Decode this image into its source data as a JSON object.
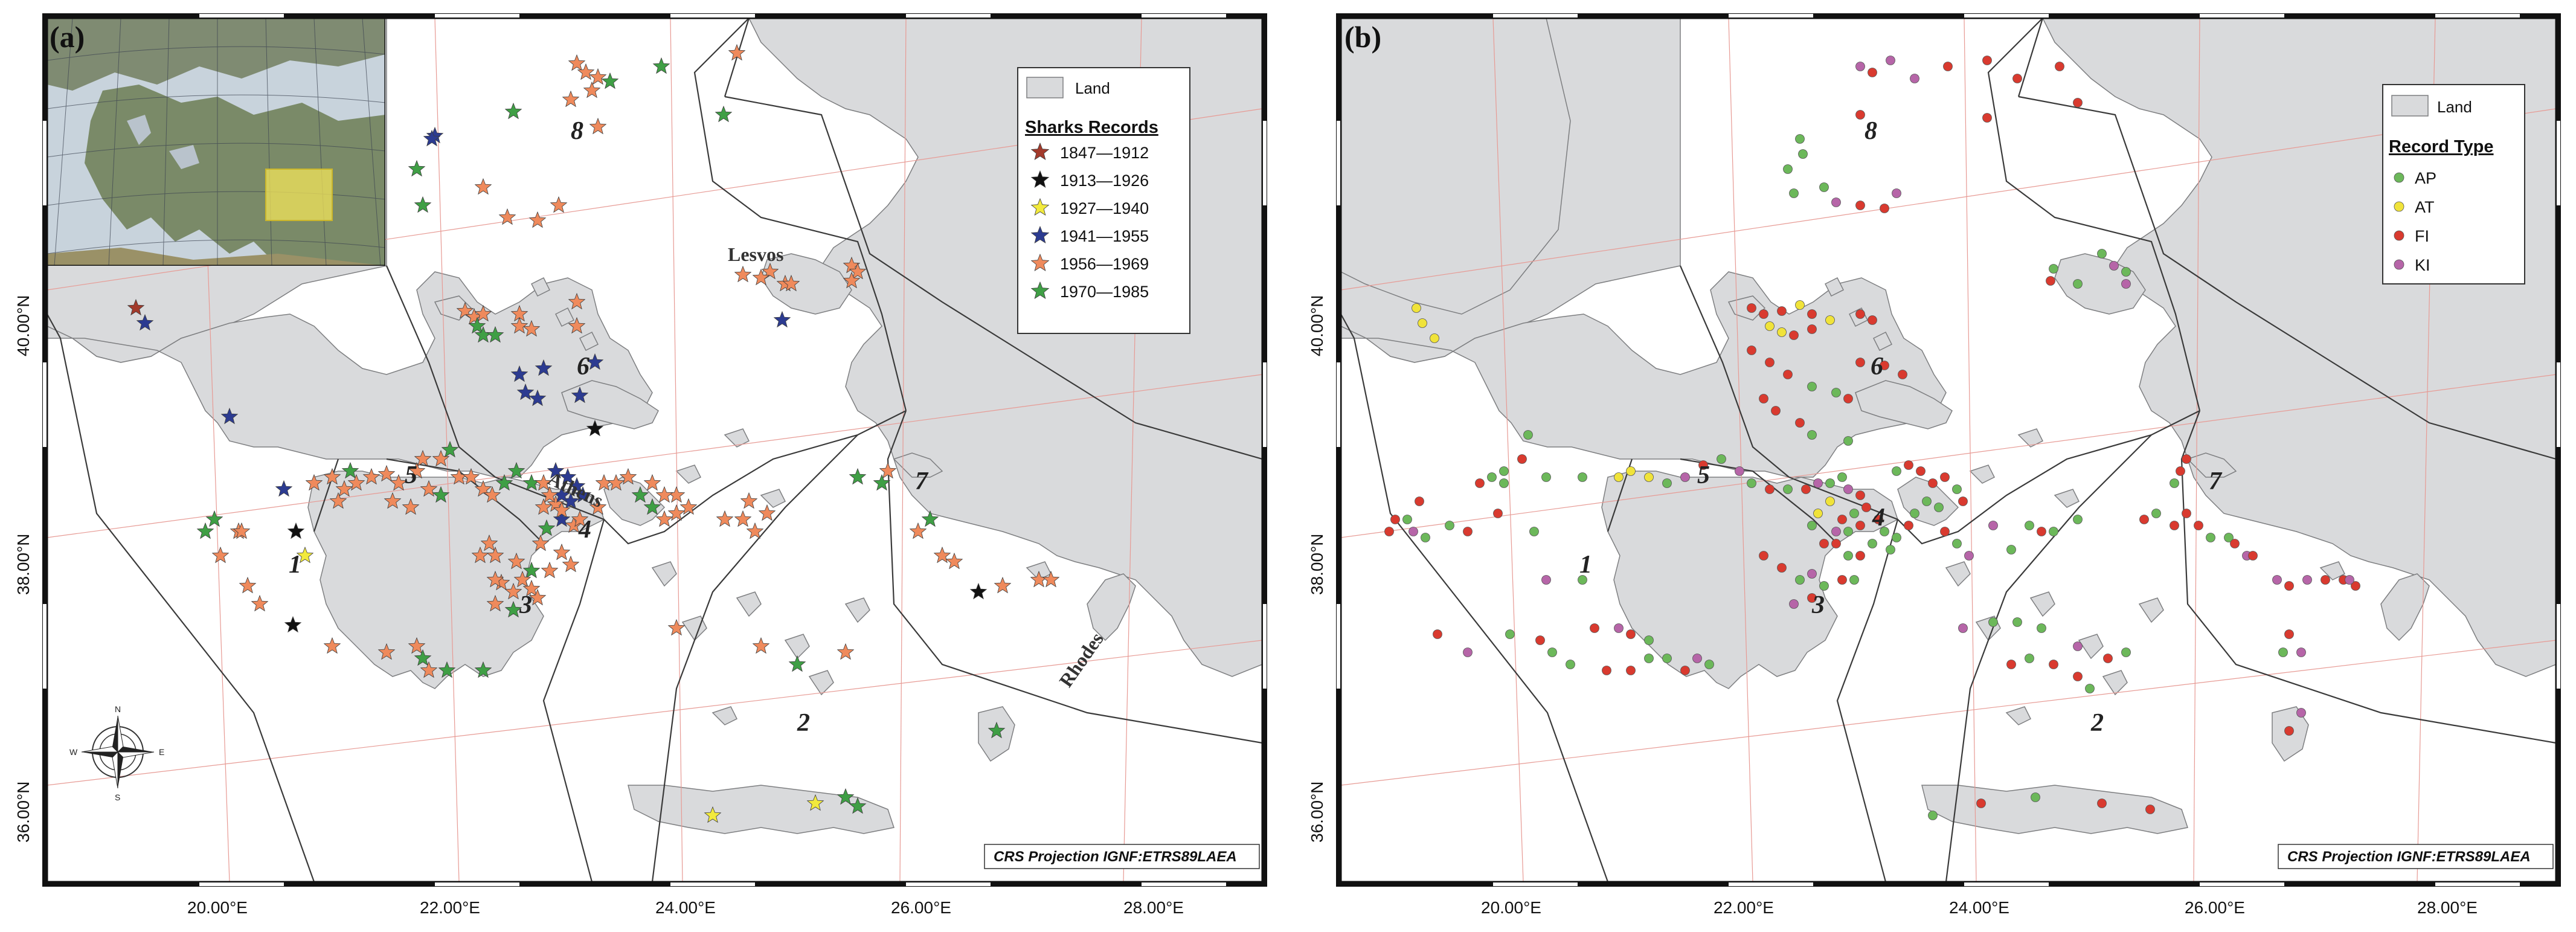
{
  "colors": {
    "land": "#d9dadc",
    "sea": "#ffffff",
    "coast": "#7d7e80",
    "zone_line": "#3a3a3a",
    "graticule": "#e79a94",
    "frame": "#111111"
  },
  "panels": [
    {
      "id": "a",
      "tag": "(a)",
      "ticks_x": [
        "20.00°E",
        "22.00°E",
        "24.00°E",
        "26.00°E",
        "28.00°E"
      ],
      "ticks_y": [
        "40.00°N",
        "38.00°N",
        "36.00°N"
      ],
      "crs": "CRS Projection IGNF:ETRS89LAEA",
      "place_labels": [
        "Lesvos",
        "Athens",
        "Rhodes"
      ],
      "zone_labels": [
        "1",
        "2",
        "3",
        "4",
        "5",
        "6",
        "7",
        "8"
      ],
      "legend": {
        "land_label": "Land",
        "title": "Sharks Records",
        "entries": [
          {
            "label": "1847—1912",
            "color": "#a33a2b"
          },
          {
            "label": "1913—1926",
            "color": "#111111"
          },
          {
            "label": "1927—1940",
            "color": "#f2ea3c"
          },
          {
            "label": "1941—1955",
            "color": "#2c3b91"
          },
          {
            "label": "1956—1969",
            "color": "#ef8a5c"
          },
          {
            "label": "1970—1985",
            "color": "#3f9f45"
          }
        ]
      },
      "inset_icon": "europe-locator-map-icon",
      "compass_icon": "compass-rose-icon",
      "compass_letters": [
        "N",
        "S",
        "W",
        "E"
      ]
    },
    {
      "id": "b",
      "tag": "(b)",
      "ticks_x": [
        "20.00°E",
        "22.00°E",
        "24.00°E",
        "26.00°E",
        "28.00°E"
      ],
      "ticks_y": [
        "40.00°N",
        "38.00°N",
        "36.00°N"
      ],
      "crs": "CRS Projection IGNF:ETRS89LAEA",
      "zone_labels": [
        "1",
        "2",
        "3",
        "4",
        "5",
        "6",
        "7",
        "8"
      ],
      "legend": {
        "land_label": "Land",
        "title": "Record Type",
        "entries": [
          {
            "label": "AP",
            "color": "#6cb85a"
          },
          {
            "label": "AT",
            "color": "#f0e33a"
          },
          {
            "label": "FI",
            "color": "#d93a2f"
          },
          {
            "label": "KI",
            "color": "#b665a8"
          }
        ]
      }
    }
  ]
}
